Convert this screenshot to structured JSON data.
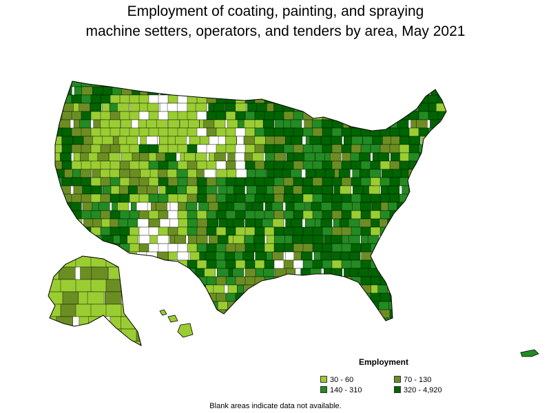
{
  "title_line1": "Employment of coating, painting, and spraying",
  "title_line2": "machine setters, operators, and tenders by area, May 2021",
  "legend": {
    "heading": "Employment",
    "items": [
      {
        "label": "30 - 60",
        "color": "#9acd32"
      },
      {
        "label": "70 - 130",
        "color": "#6b8e23"
      },
      {
        "label": "140 - 310",
        "color": "#228b22"
      },
      {
        "label": "320 - 4,920",
        "color": "#006400"
      }
    ]
  },
  "footnote": "Blank areas indicate data not available.",
  "colors": {
    "no_data": "#ffffff",
    "border": "#000000",
    "low": "#9acd32",
    "mid_low": "#6b8e23",
    "mid_high": "#228b22",
    "high": "#006400"
  }
}
